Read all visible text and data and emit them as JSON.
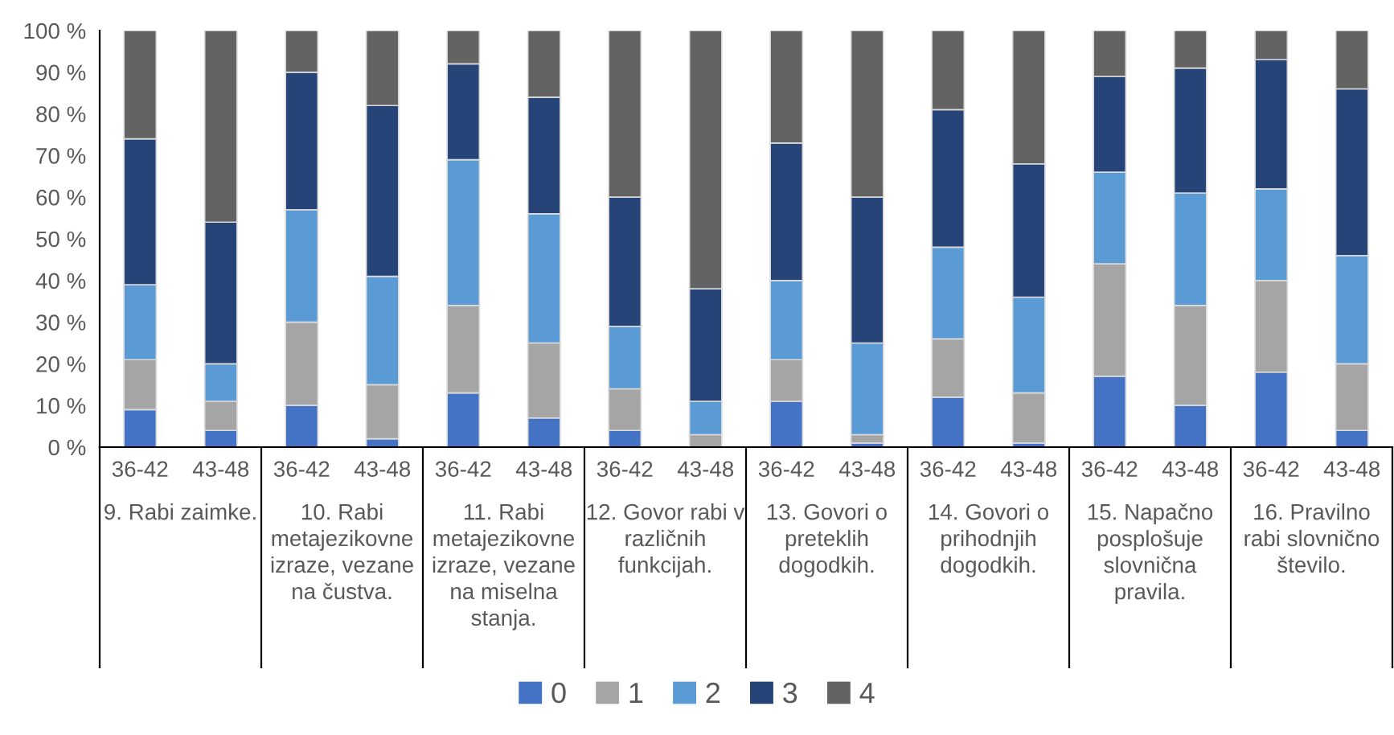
{
  "chart_data": {
    "type": "bar",
    "stacked": true,
    "categories": [
      "36-42",
      "43-48",
      "36-42",
      "43-48",
      "36-42",
      "43-48",
      "36-42",
      "43-48",
      "36-42",
      "43-48",
      "36-42",
      "43-48",
      "36-42",
      "43-48",
      "36-42",
      "43-48"
    ],
    "series": [
      {
        "name": "0",
        "color": "#4472c4",
        "values": [
          9,
          4,
          10,
          2,
          13,
          7,
          4,
          0,
          11,
          1,
          12,
          1,
          17,
          10,
          18,
          4
        ]
      },
      {
        "name": "1",
        "color": "#a5a5a5",
        "values": [
          12,
          7,
          20,
          13,
          21,
          18,
          10,
          3,
          10,
          2,
          14,
          12,
          27,
          24,
          22,
          16
        ]
      },
      {
        "name": "2",
        "color": "#5b9bd5",
        "values": [
          18,
          9,
          27,
          26,
          35,
          31,
          15,
          8,
          19,
          22,
          22,
          23,
          22,
          27,
          22,
          26
        ]
      },
      {
        "name": "3",
        "color": "#264478",
        "values": [
          35,
          34,
          33,
          41,
          23,
          28,
          31,
          27,
          33,
          35,
          33,
          32,
          23,
          30,
          31,
          40
        ]
      },
      {
        "name": "4",
        "color": "#636363",
        "values": [
          26,
          46,
          10,
          18,
          8,
          16,
          40,
          62,
          27,
          40,
          19,
          32,
          11,
          9,
          7,
          14
        ]
      }
    ],
    "ylim": [
      0,
      100
    ],
    "yticks": [
      {
        "value": 0,
        "label": "0 %"
      },
      {
        "value": 10,
        "label": "10 %"
      },
      {
        "value": 20,
        "label": "20 %"
      },
      {
        "value": 30,
        "label": "30 %"
      },
      {
        "value": 40,
        "label": "40 %"
      },
      {
        "value": 50,
        "label": "50 %"
      },
      {
        "value": 60,
        "label": "60 %"
      },
      {
        "value": 70,
        "label": "70 %"
      },
      {
        "value": 80,
        "label": "80 %"
      },
      {
        "value": 90,
        "label": "90 %"
      },
      {
        "value": 100,
        "label": "100 %"
      }
    ],
    "annotations": [
      "9. Rabi zaimke.",
      "10. Rabi\nmetajezikovne\nizraze, vezane\nna čustva.",
      "11. Rabi\nmetajezikovne\nizraze, vezane\nna miselna\nstanja.",
      "12. Govor rabi v\nrazličnih\nfunkcijah.",
      "13. Govori o\npreteklih\ndogodkih.",
      "14. Govori o\nprihodnjih\ndogodkih.",
      "15. Napačno\nposplošuje\nslovnična\npravila.",
      "16. Pravilno\nrabi slovnično\nštevilo."
    ],
    "grid": false,
    "legend": "bottom"
  }
}
